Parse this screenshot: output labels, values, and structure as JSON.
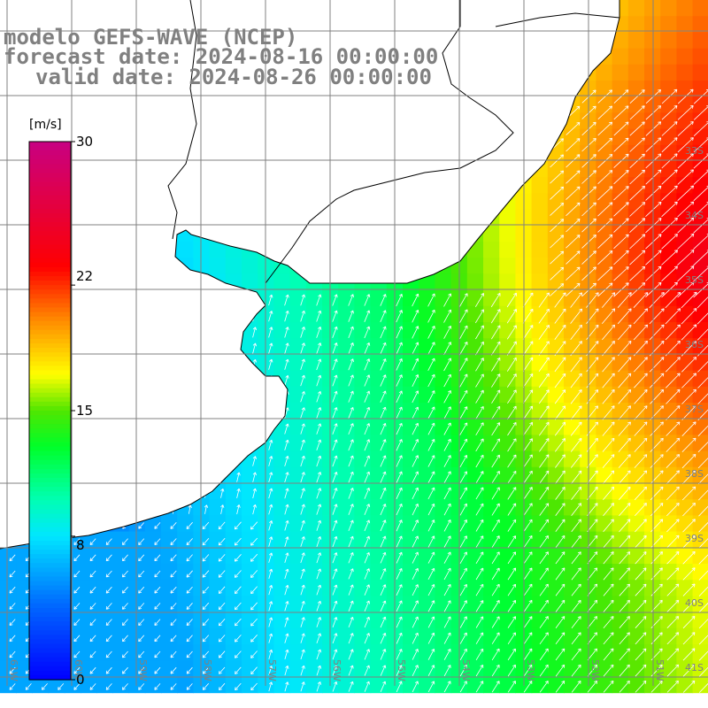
{
  "title": {
    "model": "modelo GEFS-WAVE (NCEP)",
    "forecast": "forecast date: 2024-08-16 00:00:00",
    "valid": "valid date: 2024-08-26 00:00:00"
  },
  "colorbar": {
    "unit": "[m/s]",
    "ticks": [
      "30",
      "22",
      "15",
      "8",
      "0"
    ],
    "tick_values": [
      30,
      22,
      15,
      8,
      0
    ],
    "colors": [
      "#0000ff",
      "#0070ff",
      "#00d8ff",
      "#00ffd0",
      "#00ff40",
      "#40e000",
      "#ffff00",
      "#ff8000",
      "#ff0000",
      "#c00080"
    ]
  },
  "map": {
    "lat_labels": [
      "33S",
      "34S",
      "35S",
      "36S",
      "37S",
      "38S",
      "39S",
      "40S",
      "41S"
    ],
    "lon_labels": [
      "61W",
      "60W",
      "59W",
      "58W",
      "57W",
      "56W",
      "55W",
      "54W",
      "53W",
      "52W",
      "51W"
    ],
    "land_color": "#ffffff",
    "grid_color": "#808080",
    "coast_color": "#000000"
  }
}
